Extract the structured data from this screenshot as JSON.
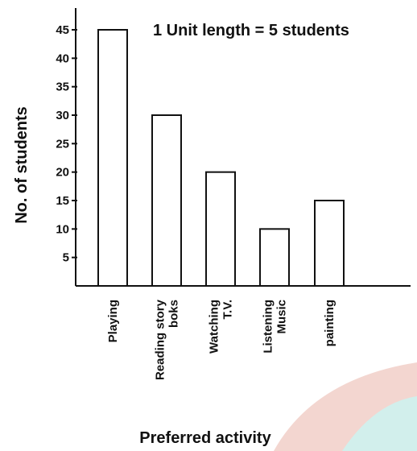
{
  "chart_data": {
    "type": "bar",
    "title": "",
    "annotation": "1 Unit length = 5 students",
    "xlabel": "Preferred activity",
    "ylabel": "No. of students",
    "categories": [
      [
        "Playing"
      ],
      [
        "Reading story",
        "boks"
      ],
      [
        "Watching",
        "T.V."
      ],
      [
        "Listening",
        "Music"
      ],
      [
        "painting"
      ]
    ],
    "values": [
      45,
      30,
      20,
      10,
      15
    ],
    "yticks": [
      5,
      10,
      15,
      20,
      25,
      30,
      35,
      40,
      45
    ],
    "ylim": [
      0,
      45
    ],
    "grid": false,
    "legend": "none",
    "bar_fill": "#ffffff",
    "bar_stroke": "#111111",
    "decoration_colors": [
      "#f3d6d0",
      "#d2efec"
    ]
  }
}
